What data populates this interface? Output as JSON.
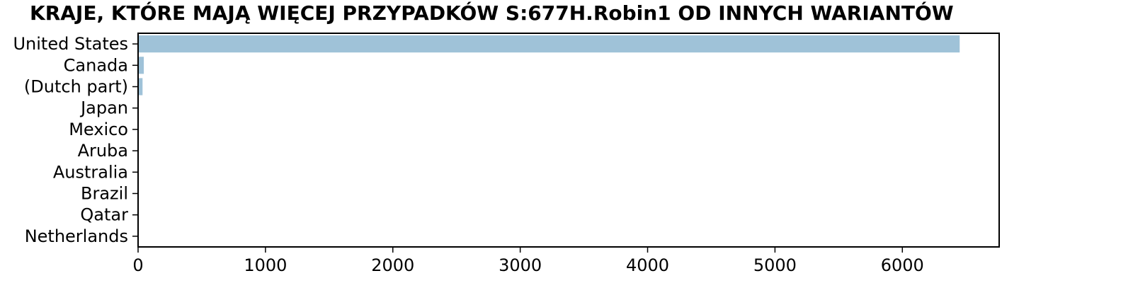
{
  "chart_data": {
    "type": "bar",
    "orientation": "horizontal",
    "title": "KRAJE, KTÓRE MAJĄ WIĘCEJ PRZYPADKÓW S:677H.Robin1 OD INNYCH WARIANTÓW",
    "xlabel": "",
    "ylabel": "",
    "categories": [
      "United States",
      "Canada",
      "(Dutch part)",
      "Japan",
      "Mexico",
      "Aruba",
      "Australia",
      "Brazil",
      "Qatar",
      "Netherlands"
    ],
    "values": [
      6450,
      45,
      35,
      3,
      3,
      2,
      2,
      1,
      1,
      1
    ],
    "xlim": [
      0,
      6760
    ],
    "xticks": [
      0,
      1000,
      2000,
      3000,
      4000,
      5000,
      6000
    ],
    "grid": false,
    "bar_color": "#9fc2d8"
  }
}
